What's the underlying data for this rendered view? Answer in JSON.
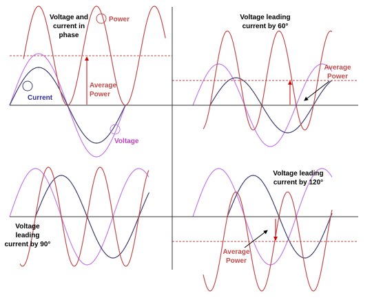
{
  "panels": [
    {
      "caption": [
        "Voltage and",
        "current in",
        "phase"
      ],
      "power_label": "Power",
      "average_label": [
        "Average",
        "Power"
      ],
      "current_label": "Current",
      "voltage_label": "Voltage"
    },
    {
      "caption": [
        "Voltage leading",
        "current by 60°"
      ],
      "average_label": [
        "Average",
        "Power"
      ]
    },
    {
      "caption": [
        "Voltage",
        "leading",
        "current by 90°"
      ]
    },
    {
      "caption": [
        "Voltage leading",
        "current by 120°"
      ],
      "average_label": [
        "Average",
        "Power"
      ]
    }
  ]
}
